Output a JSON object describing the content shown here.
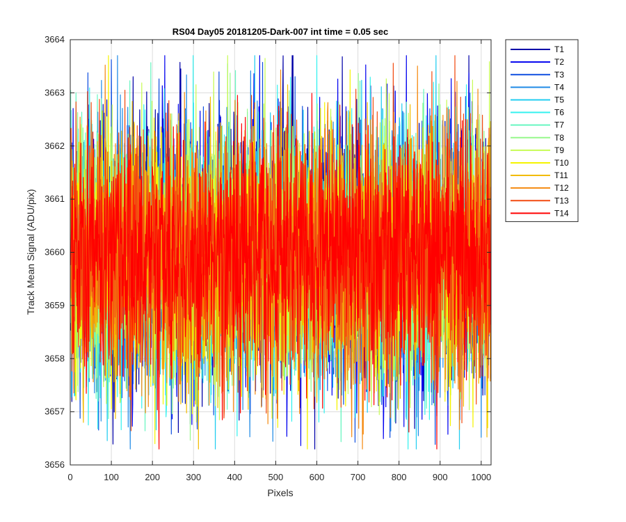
{
  "chart_data": {
    "type": "line",
    "title": "RS04 Day05 20181205-Dark-007 int time = 0.05 sec",
    "xlabel": "Pixels",
    "ylabel": "Track Mean Signal (ADU/pix)",
    "xlim": [
      0,
      1024
    ],
    "ylim": [
      3656,
      3664
    ],
    "xticks": [
      0,
      100,
      200,
      300,
      400,
      500,
      600,
      700,
      800,
      900,
      1000
    ],
    "yticks": [
      3656,
      3657,
      3658,
      3659,
      3660,
      3661,
      3662,
      3663,
      3664
    ],
    "grid": true,
    "legend_position": "outside-top-right",
    "x_range": {
      "start": 1,
      "end": 1024,
      "step": 1
    },
    "noise_description": "per-pixel noise around ~3660 ADU, std ~1.2",
    "series": [
      {
        "name": "T1",
        "color": "#0000a8",
        "mean": 3659.95,
        "std": 1.25,
        "seed": 11
      },
      {
        "name": "T2",
        "color": "#0000ef",
        "mean": 3659.95,
        "std": 1.25,
        "seed": 23
      },
      {
        "name": "T3",
        "color": "#0f4fe0",
        "mean": 3659.9,
        "std": 1.2,
        "seed": 37
      },
      {
        "name": "T4",
        "color": "#1f8ae6",
        "mean": 3659.9,
        "std": 1.2,
        "seed": 41
      },
      {
        "name": "T5",
        "color": "#20cdf0",
        "mean": 3659.9,
        "std": 1.2,
        "seed": 53
      },
      {
        "name": "T6",
        "color": "#33f1ef",
        "mean": 3659.9,
        "std": 1.2,
        "seed": 67
      },
      {
        "name": "T7",
        "color": "#67f6c0",
        "mean": 3659.9,
        "std": 1.2,
        "seed": 79
      },
      {
        "name": "T8",
        "color": "#96f98b",
        "mean": 3659.9,
        "std": 1.2,
        "seed": 83
      },
      {
        "name": "T9",
        "color": "#c7fb55",
        "mean": 3659.9,
        "std": 1.2,
        "seed": 97
      },
      {
        "name": "T10",
        "color": "#f5f400",
        "mean": 3659.9,
        "std": 1.2,
        "seed": 101
      },
      {
        "name": "T11",
        "color": "#f2bb00",
        "mean": 3659.95,
        "std": 1.2,
        "seed": 113
      },
      {
        "name": "T12",
        "color": "#f58a10",
        "mean": 3659.95,
        "std": 1.2,
        "seed": 127
      },
      {
        "name": "T13",
        "color": "#f24a10",
        "mean": 3659.95,
        "std": 1.2,
        "seed": 131
      },
      {
        "name": "T14",
        "color": "#ff0000",
        "mean": 3660.0,
        "std": 1.15,
        "seed": 139
      }
    ]
  }
}
